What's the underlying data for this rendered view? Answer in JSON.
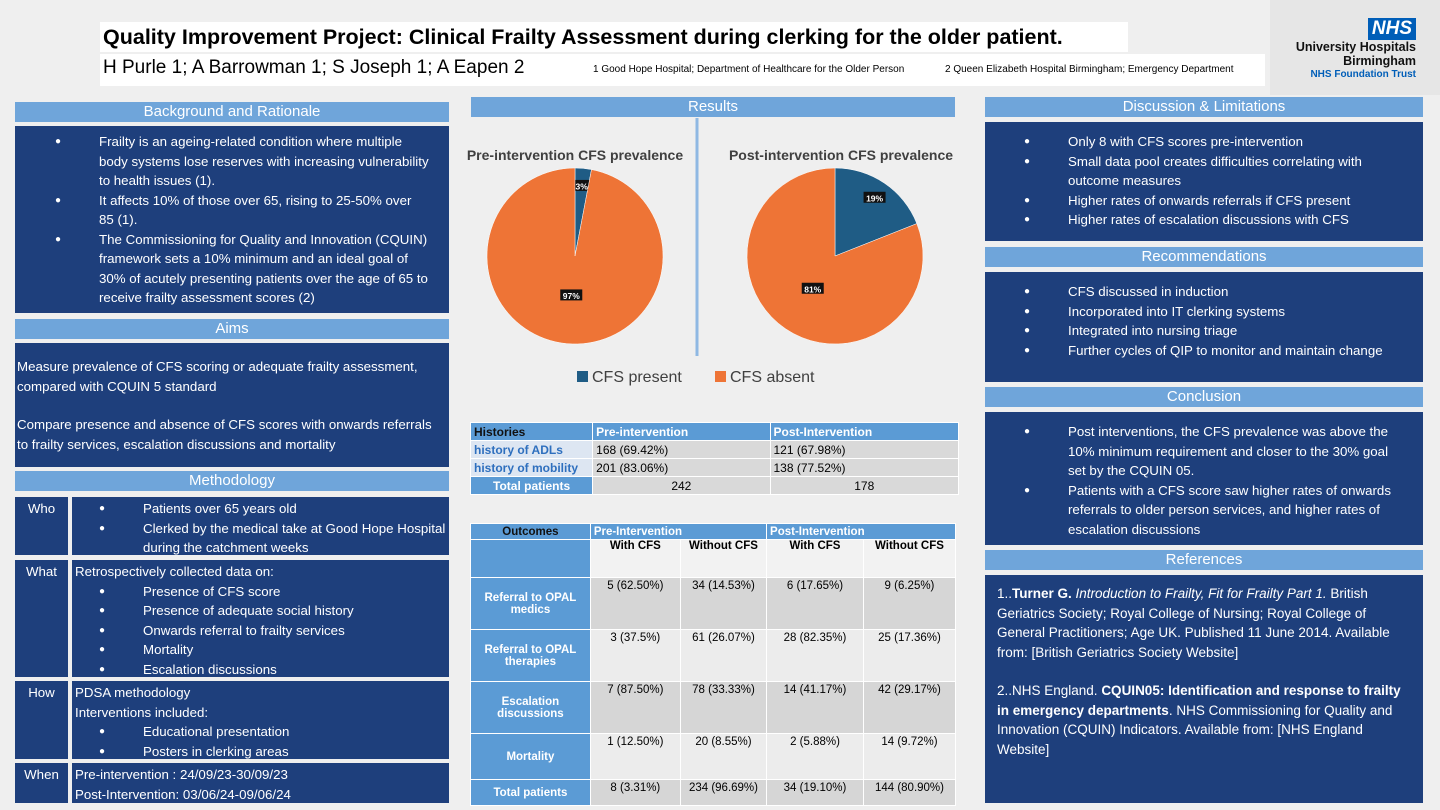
{
  "header": {
    "title": "Quality Improvement Project: Clinical Frailty Assessment during clerking for the older patient.",
    "authors": "H Purle 1; A Barrowman 1; S Joseph 1; A Eapen 2",
    "affiliations": [
      "1 Good Hope Hospital; Department of Healthcare for the Older Person",
      "2 Queen Elizabeth Hospital Birmingham; Emergency Department"
    ]
  },
  "logo": {
    "badge": "NHS",
    "lines": [
      "University Hospitals",
      "Birmingham"
    ],
    "trust": "NHS Foundation Trust"
  },
  "background": {
    "heading": "Background and Rationale",
    "bullets": [
      "Frailty is an ageing-related condition where multiple body systems lose reserves with increasing vulnerability to health issues (1).",
      "It affects 10% of those over 65, rising to 25-50% over 85 (1).",
      "The Commissioning for Quality and Innovation (CQUIN) framework sets a 10% minimum and an ideal goal of 30% of acutely presenting patients over the age of 65 to receive frailty assessment scores (2)"
    ]
  },
  "aims": {
    "heading": "Aims",
    "paragraphs": [
      "Measure prevalence of CFS scoring or adequate frailty assessment, compared with CQUIN 5 standard",
      "Compare presence and absence of CFS scores with onwards referrals to frailty services, escalation discussions and mortality"
    ]
  },
  "methodology": {
    "heading": "Methodology",
    "rows": [
      {
        "label": "Who",
        "bullets": [
          "Patients over 65 years old",
          "Clerked by the medical take at Good Hope Hospital during the catchment weeks"
        ]
      },
      {
        "label": "What",
        "lines": [
          "Retrospectively collected data on:"
        ],
        "bullets": [
          "Presence of CFS score",
          "Presence of  adequate social history",
          "Onwards referral to frailty services",
          "Mortality",
          "Escalation discussions"
        ]
      },
      {
        "label": "How",
        "lines": [
          "PDSA methodology",
          "Interventions included:"
        ],
        "bullets": [
          "Educational presentation",
          "Posters in clerking areas"
        ]
      },
      {
        "label": "When",
        "lines": [
          "Pre-intervention : 24/09/23-30/09/23",
          "Post-Intervention: 03/06/24-09/06/24"
        ]
      }
    ]
  },
  "results": {
    "heading": "Results",
    "charts": [
      {
        "type": "pie",
        "title": "Pre-intervention CFS prevalence",
        "values": [
          3,
          97
        ],
        "value_labels": [
          "3%",
          "97%"
        ]
      },
      {
        "type": "pie",
        "title": "Post-intervention CFS prevalence",
        "values": [
          19,
          81
        ],
        "value_labels": [
          "19%",
          "81%"
        ]
      }
    ],
    "legend": [
      {
        "name": "CFS present",
        "color": "#1f5c85"
      },
      {
        "name": "CFS absent",
        "color": "#ee7436"
      }
    ],
    "histories": {
      "columns": [
        "Histories",
        "Pre-intervention",
        "Post-Intervention"
      ],
      "rows": [
        [
          "history of ADLs",
          "168 (69.42%)",
          "121 (67.98%)"
        ],
        [
          "history of mobility",
          "201 (83.06%)",
          "138 (77.52%)"
        ],
        [
          "Total patients",
          "242",
          "178"
        ]
      ]
    },
    "outcomes": {
      "groups": [
        "Outcomes",
        "Pre-Intervention",
        "Post-Intervention"
      ],
      "subheaders": [
        "With CFS",
        "Without CFS",
        "With CFS",
        "Without CFS"
      ],
      "rows": [
        [
          "Referral to OPAL medics",
          "5 (62.50%)",
          "34 (14.53%)",
          "6 (17.65%)",
          "9 (6.25%)"
        ],
        [
          "Referral to OPAL therapies",
          "3 (37.5%)",
          "61 (26.07%)",
          "28 (82.35%)",
          "25 (17.36%)"
        ],
        [
          "Escalation discussions",
          "7 (87.50%)",
          "78 (33.33%)",
          "14 (41.17%)",
          "42 (29.17%)"
        ],
        [
          "Mortality",
          "1 (12.50%)",
          "20 (8.55%)",
          "2 (5.88%)",
          "14 (9.72%)"
        ],
        [
          "Total patients",
          "8 (3.31%)",
          "234 (96.69%)",
          "34 (19.10%)",
          "144 (80.90%)"
        ]
      ]
    }
  },
  "discussion": {
    "heading": "Discussion & Limitations",
    "bullets": [
      "Only 8 with CFS scores pre-intervention",
      "Small data pool creates difficulties correlating with outcome measures",
      "Higher rates of onwards referrals if CFS present",
      "Higher rates of escalation discussions with CFS"
    ]
  },
  "recommendations": {
    "heading": "Recommendations",
    "bullets": [
      "CFS discussed in induction",
      "Incorporated into IT clerking systems",
      "Integrated into nursing triage",
      "Further cycles of QIP to monitor and maintain change"
    ]
  },
  "conclusion": {
    "heading": "Conclusion",
    "bullets": [
      "Post interventions, the CFS prevalence was above the 10% minimum requirement and closer to the 30% goal set by the CQUIN 05.",
      "Patients with a CFS score saw higher rates of onwards referrals to older person services, and higher rates of escalation discussions"
    ]
  },
  "references": {
    "heading": "References",
    "items": [
      [
        {
          "text": "1..",
          "style": "normal"
        },
        {
          "text": "Turner G.",
          "style": "bold"
        },
        {
          "text": " Introduction to Frailty, Fit for Frailty Part 1.",
          "style": "italic"
        },
        {
          "text": " British Geriatrics Society; Royal College of Nursing; Royal College of General Practitioners; Age UK. Published 11 June 2014. Available from: [British Geriatrics Society Website]",
          "style": "normal"
        }
      ],
      [
        {
          "text": "2..NHS England. ",
          "style": "normal"
        },
        {
          "text": "CQUIN05: Identification and response to frailty in emergency departments",
          "style": "bold"
        },
        {
          "text": ". NHS Commissioning for Quality and Innovation (CQUIN) Indicators. Available from: [NHS England Website]",
          "style": "normal"
        }
      ]
    ]
  }
}
